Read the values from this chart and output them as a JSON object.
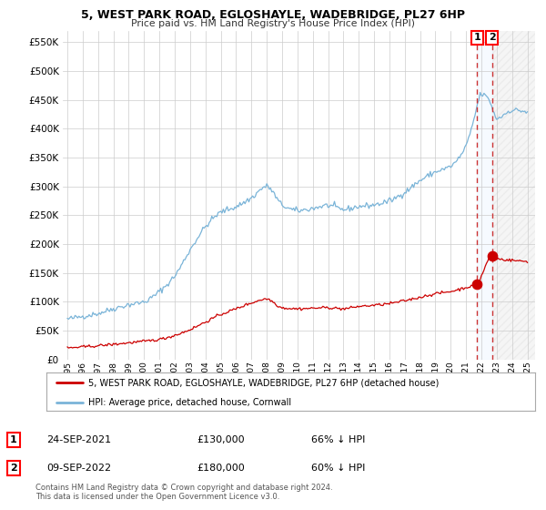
{
  "title": "5, WEST PARK ROAD, EGLOSHAYLE, WADEBRIDGE, PL27 6HP",
  "subtitle": "Price paid vs. HM Land Registry's House Price Index (HPI)",
  "legend_line1": "5, WEST PARK ROAD, EGLOSHAYLE, WADEBRIDGE, PL27 6HP (detached house)",
  "legend_line2": "HPI: Average price, detached house, Cornwall",
  "footer1": "Contains HM Land Registry data © Crown copyright and database right 2024.",
  "footer2": "This data is licensed under the Open Government Licence v3.0.",
  "sale1_date": "24-SEP-2021",
  "sale1_price": "£130,000",
  "sale1_hpi": "66% ↓ HPI",
  "sale2_date": "09-SEP-2022",
  "sale2_price": "£180,000",
  "sale2_hpi": "60% ↓ HPI",
  "hpi_color": "#7ab4d8",
  "price_color": "#cc0000",
  "dashed_line_color": "#cc3333",
  "highlight_bg": "#ddeeff",
  "grid_color": "#cccccc",
  "background_color": "#ffffff",
  "ylim": [
    0,
    570000
  ],
  "yticks": [
    0,
    50000,
    100000,
    150000,
    200000,
    250000,
    300000,
    350000,
    400000,
    450000,
    500000,
    550000
  ],
  "xlim_start": 1994.7,
  "xlim_end": 2025.5,
  "xticks": [
    1995,
    1996,
    1997,
    1998,
    1999,
    2000,
    2001,
    2002,
    2003,
    2004,
    2005,
    2006,
    2007,
    2008,
    2009,
    2010,
    2011,
    2012,
    2013,
    2014,
    2015,
    2016,
    2017,
    2018,
    2019,
    2020,
    2021,
    2022,
    2023,
    2024,
    2025
  ],
  "sale1_x": 2021.73,
  "sale2_x": 2022.69,
  "sale1_y": 130000,
  "sale2_y": 180000,
  "hpi_key_x": [
    1995,
    1996,
    1997,
    1998,
    1999,
    2000,
    2001,
    2002,
    2003,
    2004,
    2005,
    2006,
    2007,
    2008,
    2009,
    2010,
    2011,
    2012,
    2013,
    2014,
    2015,
    2016,
    2017,
    2018,
    2019,
    2020,
    2021,
    2021.5,
    2022,
    2022.5,
    2023,
    2024,
    2025
  ],
  "hpi_key_y": [
    70000,
    75000,
    80000,
    88000,
    95000,
    100000,
    118000,
    145000,
    190000,
    230000,
    255000,
    265000,
    280000,
    300000,
    268000,
    258000,
    262000,
    267000,
    260000,
    265000,
    268000,
    275000,
    290000,
    310000,
    325000,
    335000,
    370000,
    415000,
    460000,
    450000,
    418000,
    432000,
    428000
  ],
  "price_key_x": [
    1995,
    1997,
    1999,
    2001,
    2002,
    2003,
    2004,
    2005,
    2006,
    2007,
    2008,
    2009,
    2010,
    2011,
    2012,
    2013,
    2014,
    2015,
    2016,
    2017,
    2018,
    2019,
    2020,
    2021,
    2021.73,
    2022,
    2022.69,
    2023,
    2024,
    2025
  ],
  "price_key_y": [
    20000,
    24000,
    29000,
    35000,
    42000,
    52000,
    65000,
    78000,
    88000,
    98000,
    105000,
    90000,
    88000,
    89000,
    90000,
    88000,
    92000,
    94000,
    97000,
    102000,
    108000,
    114000,
    118000,
    125000,
    130000,
    145000,
    180000,
    175000,
    172000,
    170000
  ]
}
